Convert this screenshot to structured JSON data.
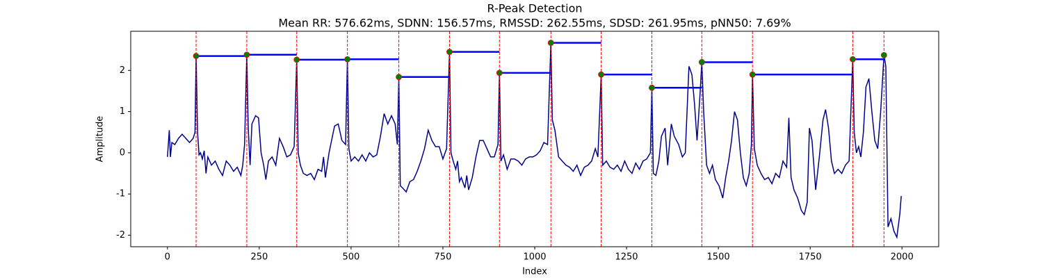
{
  "chart_data": {
    "type": "line",
    "title": "R-Peak Detection",
    "subtitle": "Mean RR: 576.62ms, SDNN: 156.57ms, RMSSD: 262.55ms, SDSD: 261.95ms, pNN50: 7.69%",
    "x_label": "Index",
    "y_label": "Amplitude",
    "color": "#00008b",
    "x": [
      0,
      5,
      8,
      12,
      20,
      30,
      40,
      50,
      60,
      70,
      75,
      78,
      82,
      86,
      90,
      95,
      100,
      105,
      110,
      120,
      130,
      140,
      150,
      160,
      170,
      180,
      190,
      200,
      205,
      210,
      216,
      220,
      225,
      230,
      240,
      248,
      255,
      262,
      268,
      275,
      285,
      295,
      305,
      315,
      325,
      335,
      345,
      352,
      356,
      362,
      370,
      380,
      390,
      400,
      410,
      420,
      425,
      430,
      440,
      455,
      465,
      475,
      485,
      490,
      494,
      500,
      510,
      520,
      530,
      540,
      550,
      560,
      570,
      580,
      590,
      600,
      610,
      620,
      626,
      630,
      634,
      640,
      650,
      660,
      670,
      680,
      690,
      700,
      710,
      720,
      730,
      740,
      750,
      760,
      768,
      772,
      778,
      785,
      790,
      795,
      800,
      810,
      815,
      820,
      830,
      840,
      850,
      860,
      870,
      880,
      890,
      900,
      904,
      908,
      915,
      925,
      935,
      945,
      955,
      965,
      975,
      985,
      995,
      1005,
      1015,
      1025,
      1035,
      1044,
      1048,
      1055,
      1065,
      1075,
      1085,
      1095,
      1105,
      1115,
      1125,
      1135,
      1145,
      1155,
      1165,
      1172,
      1181,
      1185,
      1195,
      1205,
      1215,
      1225,
      1235,
      1245,
      1255,
      1265,
      1275,
      1285,
      1295,
      1305,
      1315,
      1319,
      1323,
      1330,
      1338,
      1345,
      1355,
      1362,
      1372,
      1380,
      1392,
      1402,
      1410,
      1420,
      1428,
      1435,
      1442,
      1450,
      1455,
      1460,
      1468,
      1476,
      1484,
      1492,
      1502,
      1512,
      1520,
      1528,
      1536,
      1544,
      1552,
      1560,
      1568,
      1576,
      1584,
      1590,
      1593,
      1598,
      1606,
      1616,
      1626,
      1636,
      1646,
      1656,
      1666,
      1676,
      1686,
      1692,
      1698,
      1706,
      1716,
      1726,
      1734,
      1742,
      1748,
      1755,
      1765,
      1775,
      1785,
      1792,
      1800,
      1808,
      1816,
      1826,
      1836,
      1846,
      1856,
      1866,
      1870,
      1876,
      1882,
      1888,
      1895,
      1902,
      1910,
      1918,
      1926,
      1934,
      1942,
      1951,
      1956,
      1962,
      1970,
      1978,
      1986,
      1994,
      1998
    ],
    "values": [
      -0.1,
      0.55,
      -0.1,
      0.25,
      0.2,
      0.35,
      0.45,
      0.35,
      0.25,
      0.35,
      0.5,
      2.35,
      0.5,
      -0.05,
      0.0,
      -0.15,
      0.05,
      -0.5,
      -0.1,
      -0.3,
      -0.2,
      -0.4,
      -0.55,
      -0.2,
      -0.3,
      -0.45,
      -0.35,
      -0.55,
      -0.3,
      0.2,
      2.38,
      0.6,
      -0.3,
      0.7,
      0.9,
      0.85,
      0.0,
      -0.3,
      -0.65,
      -0.2,
      -0.1,
      -0.3,
      0.35,
      0.15,
      -0.1,
      -0.05,
      0.15,
      2.26,
      0.0,
      -0.3,
      -0.5,
      -0.55,
      -0.5,
      -0.65,
      -0.4,
      -0.45,
      -0.1,
      -0.6,
      0.0,
      0.65,
      0.7,
      0.3,
      0.2,
      2.27,
      0.1,
      -0.2,
      -0.1,
      -0.2,
      -0.05,
      -0.2,
      0.0,
      -0.1,
      -0.05,
      0.4,
      0.95,
      0.7,
      0.9,
      0.7,
      0.2,
      1.84,
      -0.8,
      -0.85,
      -0.95,
      -0.7,
      -0.65,
      -0.45,
      -0.2,
      0.1,
      0.55,
      0.3,
      0.15,
      0.15,
      -0.15,
      0.1,
      2.45,
      0.0,
      -0.2,
      -0.4,
      -0.2,
      -0.7,
      -0.6,
      -0.85,
      -0.55,
      -0.9,
      -0.6,
      -0.1,
      0.3,
      0.3,
      0.1,
      -0.1,
      -0.1,
      0.2,
      1.94,
      -0.2,
      -0.05,
      -0.4,
      -0.15,
      -0.15,
      -0.2,
      -0.3,
      -0.15,
      -0.1,
      -0.1,
      -0.05,
      0.05,
      0.25,
      0.2,
      2.67,
      0.8,
      0.55,
      -0.1,
      -0.2,
      -0.3,
      -0.35,
      -0.45,
      -0.3,
      -0.55,
      -0.35,
      -0.3,
      -0.2,
      0.1,
      -0.1,
      1.9,
      -0.3,
      -0.2,
      -0.35,
      -0.4,
      -0.3,
      -0.45,
      -0.2,
      -0.4,
      -0.5,
      -0.25,
      -0.4,
      -0.2,
      -0.15,
      0.0,
      1.58,
      -0.5,
      -0.55,
      -0.2,
      0.4,
      0.6,
      -0.3,
      0.7,
      0.4,
      0.2,
      -0.1,
      0.0,
      2.1,
      1.9,
      1.2,
      0.3,
      1.4,
      2.2,
      1.0,
      -0.3,
      -0.5,
      -0.3,
      -0.65,
      -0.8,
      -1.1,
      -0.6,
      -0.2,
      0.3,
      1.0,
      0.8,
      0.0,
      -0.6,
      -0.8,
      -0.5,
      0.2,
      1.9,
      0.1,
      -0.3,
      -0.5,
      -0.65,
      -0.6,
      -0.75,
      -0.5,
      -0.6,
      -0.2,
      -0.35,
      0.85,
      -0.6,
      -0.9,
      -1.1,
      -1.4,
      -1.5,
      -1.2,
      0.6,
      0.3,
      -0.9,
      -0.1,
      0.8,
      1.05,
      0.6,
      -0.2,
      -0.5,
      -0.4,
      -0.5,
      -0.3,
      -0.2,
      2.27,
      0.5,
      0.0,
      0.15,
      -0.1,
      0.5,
      1.6,
      1.8,
      1.0,
      0.3,
      0.1,
      1.0,
      2.37,
      2.1,
      -1.8,
      -1.6,
      -1.9,
      -2.05,
      -1.5,
      -1.05
    ],
    "peaks": {
      "x": [
        78,
        216,
        352,
        490,
        630,
        768,
        904,
        1044,
        1181,
        1319,
        1455,
        1593,
        1866,
        1951
      ],
      "values": [
        2.35,
        2.38,
        2.26,
        2.27,
        1.84,
        2.45,
        1.94,
        2.67,
        1.9,
        1.58,
        2.2,
        1.9,
        2.27,
        2.37
      ],
      "marker_color": "green",
      "line_color": "red",
      "interval_color": "blue"
    },
    "xlim": [
      -100,
      2100
    ],
    "ylim": [
      -2.28,
      2.95
    ],
    "xticks": [
      0,
      250,
      500,
      750,
      1000,
      1250,
      1500,
      1750,
      2000
    ],
    "yticks": [
      -2,
      -1,
      0,
      1,
      2
    ]
  }
}
